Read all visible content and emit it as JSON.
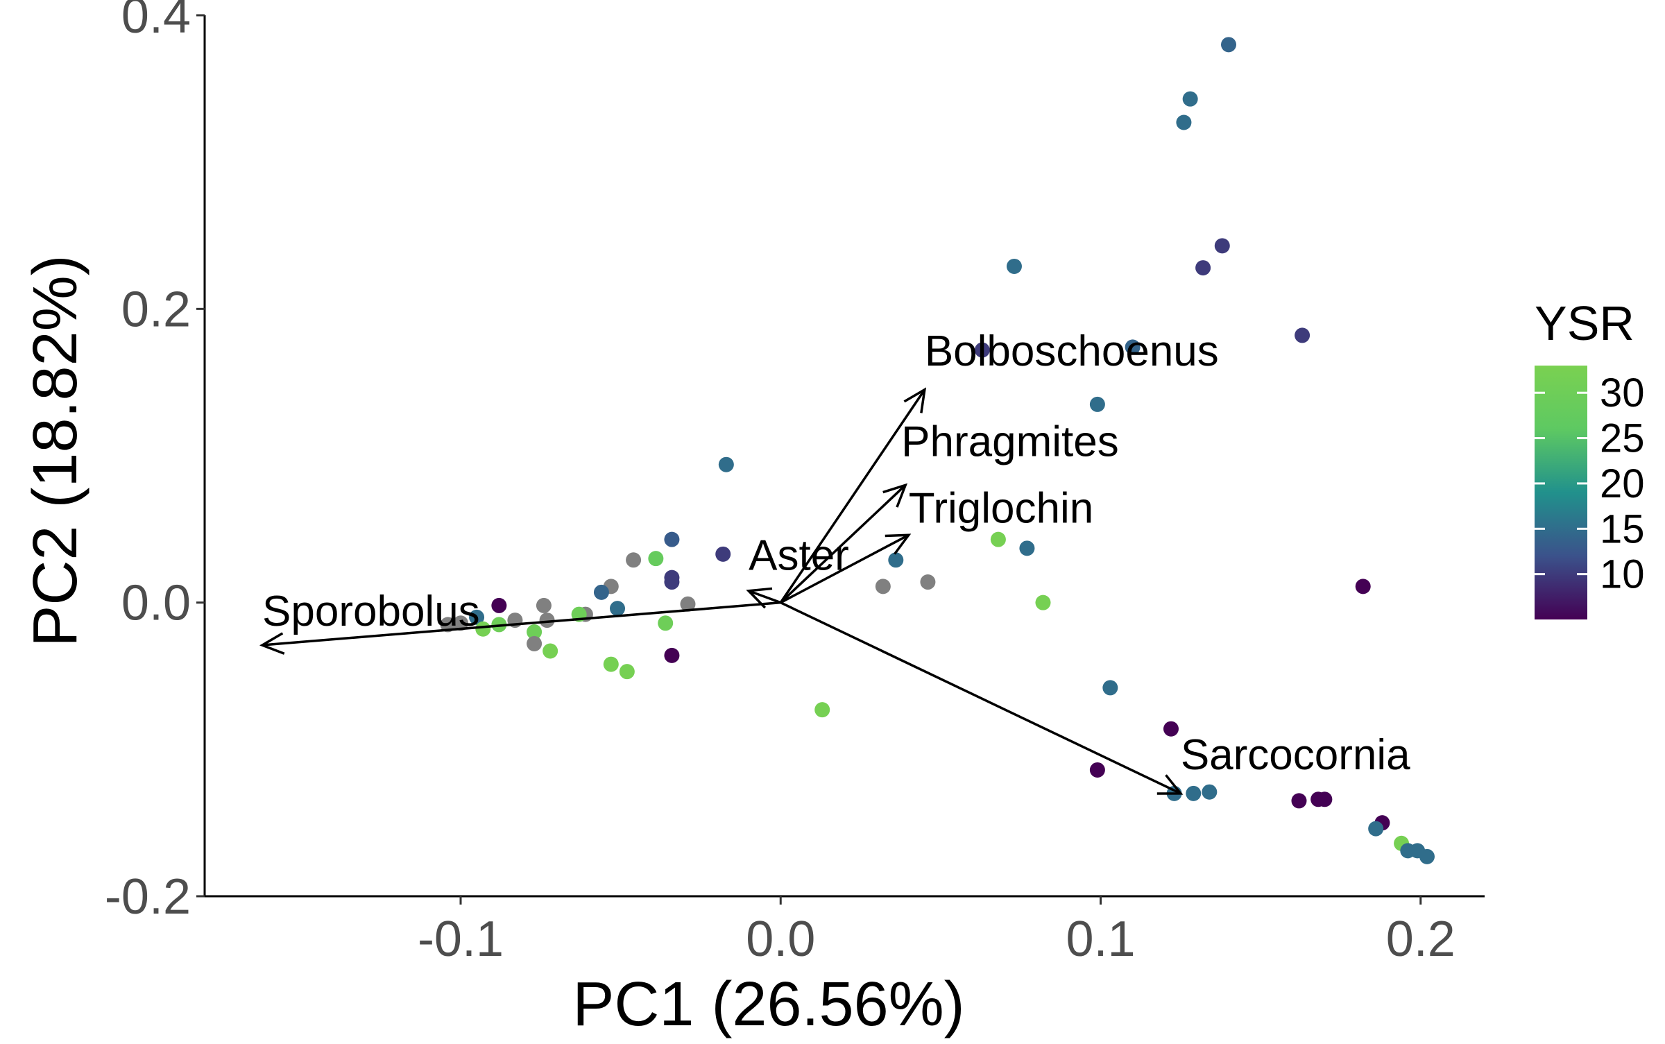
{
  "chart_data": {
    "type": "scatter",
    "subtype": "pca-biplot",
    "title": "",
    "xlabel": "PC1 (26.56%)",
    "ylabel": "PC2 (18.82%)",
    "xlim": [
      -0.18,
      0.22
    ],
    "ylim": [
      -0.2,
      0.4
    ],
    "x_ticks": [
      -0.1,
      0.0,
      0.1,
      0.2
    ],
    "x_tick_labels": [
      "-0.1",
      "0.0",
      "0.1",
      "0.2"
    ],
    "y_ticks": [
      -0.2,
      0.0,
      0.2,
      0.4
    ],
    "y_tick_labels": [
      "-0.2",
      "0.0",
      "0.2",
      "0.4"
    ],
    "grid": false,
    "color_legend": {
      "title": "YSR",
      "placement": "right",
      "min": 5,
      "max": 33,
      "ticks": [
        10,
        15,
        20,
        25,
        30
      ],
      "tick_labels": [
        "10",
        "15",
        "20",
        "25",
        "30"
      ],
      "colors": [
        "#440154",
        "#3b528b",
        "#21918c",
        "#5ec962",
        "#7ad151"
      ],
      "na_color": "#808080"
    },
    "arrows": [
      {
        "label": "Bolboschoenus",
        "x": 0.045,
        "y": 0.145
      },
      {
        "label": "Phragmites",
        "x": 0.039,
        "y": 0.08
      },
      {
        "label": "Triglochin",
        "x": 0.04,
        "y": 0.046
      },
      {
        "label": "Aster",
        "x": -0.01,
        "y": 0.008
      },
      {
        "label": "Sporobolus",
        "x": -0.162,
        "y": -0.029
      },
      {
        "label": "Sarcocornia",
        "x": 0.125,
        "y": -0.13
      }
    ],
    "points": [
      {
        "x": 0.14,
        "y": 0.38,
        "ysr": 14
      },
      {
        "x": 0.128,
        "y": 0.343,
        "ysr": 15
      },
      {
        "x": 0.126,
        "y": 0.327,
        "ysr": 15
      },
      {
        "x": 0.138,
        "y": 0.243,
        "ysr": 10
      },
      {
        "x": 0.132,
        "y": 0.228,
        "ysr": 10
      },
      {
        "x": 0.073,
        "y": 0.229,
        "ysr": 15
      },
      {
        "x": 0.163,
        "y": 0.182,
        "ysr": 10
      },
      {
        "x": 0.063,
        "y": 0.172,
        "ysr": 10
      },
      {
        "x": 0.11,
        "y": 0.174,
        "ysr": 14
      },
      {
        "x": 0.099,
        "y": 0.135,
        "ysr": 15
      },
      {
        "x": -0.017,
        "y": 0.094,
        "ysr": 15
      },
      {
        "x": 0.068,
        "y": 0.043,
        "ysr": 32
      },
      {
        "x": 0.077,
        "y": 0.037,
        "ysr": 15
      },
      {
        "x": 0.036,
        "y": 0.029,
        "ysr": 15
      },
      {
        "x": 0.046,
        "y": 0.014,
        "ysr": null
      },
      {
        "x": 0.032,
        "y": 0.011,
        "ysr": null
      },
      {
        "x": 0.082,
        "y": 0.0,
        "ysr": 32
      },
      {
        "x": 0.182,
        "y": 0.011,
        "ysr": 5
      },
      {
        "x": -0.034,
        "y": 0.043,
        "ysr": 13
      },
      {
        "x": -0.018,
        "y": 0.033,
        "ysr": 10
      },
      {
        "x": -0.039,
        "y": 0.03,
        "ysr": 28
      },
      {
        "x": -0.046,
        "y": 0.029,
        "ysr": null
      },
      {
        "x": -0.034,
        "y": 0.017,
        "ysr": 10
      },
      {
        "x": -0.034,
        "y": 0.014,
        "ysr": 10
      },
      {
        "x": -0.053,
        "y": 0.011,
        "ysr": null
      },
      {
        "x": -0.056,
        "y": 0.007,
        "ysr": 14
      },
      {
        "x": -0.029,
        "y": -0.001,
        "ysr": null
      },
      {
        "x": -0.051,
        "y": -0.004,
        "ysr": 15
      },
      {
        "x": -0.061,
        "y": -0.008,
        "ysr": null
      },
      {
        "x": -0.063,
        "y": -0.008,
        "ysr": 30
      },
      {
        "x": -0.074,
        "y": -0.002,
        "ysr": null
      },
      {
        "x": -0.073,
        "y": -0.012,
        "ysr": null
      },
      {
        "x": -0.088,
        "y": -0.002,
        "ysr": 5
      },
      {
        "x": -0.095,
        "y": -0.01,
        "ysr": 15
      },
      {
        "x": -0.083,
        "y": -0.012,
        "ysr": null
      },
      {
        "x": -0.088,
        "y": -0.015,
        "ysr": 30
      },
      {
        "x": -0.093,
        "y": -0.018,
        "ysr": 32
      },
      {
        "x": -0.1,
        "y": -0.014,
        "ysr": null
      },
      {
        "x": -0.104,
        "y": -0.015,
        "ysr": null
      },
      {
        "x": -0.077,
        "y": -0.02,
        "ysr": 30
      },
      {
        "x": -0.077,
        "y": -0.028,
        "ysr": null
      },
      {
        "x": -0.072,
        "y": -0.033,
        "ysr": 32
      },
      {
        "x": -0.036,
        "y": -0.014,
        "ysr": 30
      },
      {
        "x": -0.034,
        "y": -0.036,
        "ysr": 5
      },
      {
        "x": -0.053,
        "y": -0.042,
        "ysr": 32
      },
      {
        "x": -0.048,
        "y": -0.047,
        "ysr": 32
      },
      {
        "x": 0.013,
        "y": -0.073,
        "ysr": 32
      },
      {
        "x": 0.103,
        "y": -0.058,
        "ysr": 15
      },
      {
        "x": 0.122,
        "y": -0.086,
        "ysr": 5
      },
      {
        "x": 0.099,
        "y": -0.114,
        "ysr": 5
      },
      {
        "x": 0.123,
        "y": -0.13,
        "ysr": 15
      },
      {
        "x": 0.129,
        "y": -0.13,
        "ysr": 15
      },
      {
        "x": 0.134,
        "y": -0.129,
        "ysr": 15
      },
      {
        "x": 0.162,
        "y": -0.135,
        "ysr": 5
      },
      {
        "x": 0.168,
        "y": -0.134,
        "ysr": 5
      },
      {
        "x": 0.17,
        "y": -0.134,
        "ysr": 5
      },
      {
        "x": 0.188,
        "y": -0.15,
        "ysr": 5
      },
      {
        "x": 0.186,
        "y": -0.154,
        "ysr": 15
      },
      {
        "x": 0.194,
        "y": -0.164,
        "ysr": 32
      },
      {
        "x": 0.196,
        "y": -0.169,
        "ysr": 15
      },
      {
        "x": 0.199,
        "y": -0.169,
        "ysr": 15
      },
      {
        "x": 0.202,
        "y": -0.173,
        "ysr": 15
      }
    ]
  }
}
